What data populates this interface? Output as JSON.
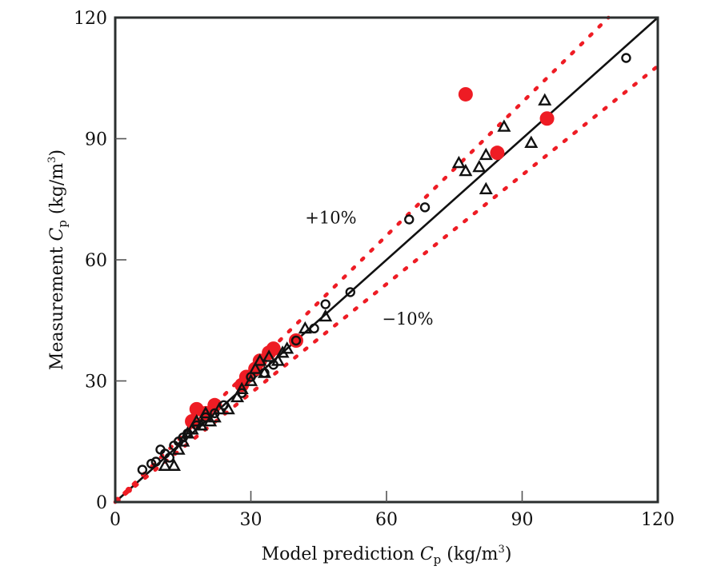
{
  "chart_data": {
    "type": "scatter",
    "title": "",
    "xlabel": "Model prediction C_p (kg/m³)",
    "ylabel": "Measurement C_p (kg/m³)",
    "xlabel_parts": {
      "pre": "Model prediction ",
      "var": "C",
      "sub": "p",
      "post": " (kg/m",
      "sup": "3",
      "end": ")"
    },
    "ylabel_parts": {
      "pre": "Measurement ",
      "var": "C",
      "sub": "p",
      "post": " (kg/m",
      "sup": "3",
      "end": ")"
    },
    "xlim": [
      0,
      120
    ],
    "ylim": [
      0,
      120
    ],
    "xticks": [
      "0",
      "30",
      "60",
      "90",
      "120"
    ],
    "yticks": [
      "0",
      "30",
      "60",
      "90",
      "120"
    ],
    "grid": false,
    "legend": "none",
    "colors": {
      "red": "#ee1c24",
      "black": "#111111",
      "axis": "#2b2f2f"
    },
    "reference_lines": [
      {
        "name": "1:1 line",
        "slope": 1.0,
        "style": "solid",
        "color": "#111111"
      },
      {
        "name": "+10%",
        "slope": 1.1,
        "style": "dotted",
        "color": "#ee1c24"
      },
      {
        "name": "-10%",
        "slope": 0.9,
        "style": "dotted",
        "color": "#ee1c24"
      }
    ],
    "annotations": [
      {
        "text": "+10%",
        "x": 42,
        "y": 69
      },
      {
        "text": "−10%",
        "x": 59,
        "y": 44
      }
    ],
    "series": [
      {
        "name": "circles",
        "marker": "open-circle",
        "points": [
          [
            6,
            8
          ],
          [
            8,
            9.5
          ],
          [
            9,
            10
          ],
          [
            10,
            13
          ],
          [
            11,
            12
          ],
          [
            12,
            11
          ],
          [
            13,
            14
          ],
          [
            14,
            15
          ],
          [
            15,
            16
          ],
          [
            16,
            17
          ],
          [
            18,
            19
          ],
          [
            20,
            21
          ],
          [
            22,
            22
          ],
          [
            24,
            24
          ],
          [
            28,
            27
          ],
          [
            30,
            31
          ],
          [
            33,
            32
          ],
          [
            35,
            34
          ],
          [
            40,
            40
          ],
          [
            44,
            43
          ],
          [
            46.5,
            49
          ],
          [
            52,
            52
          ],
          [
            65,
            70
          ],
          [
            68.5,
            73
          ],
          [
            113,
            110
          ]
        ]
      },
      {
        "name": "triangles",
        "marker": "open-triangle",
        "points": [
          [
            11,
            9
          ],
          [
            13,
            9
          ],
          [
            14,
            13
          ],
          [
            15,
            15
          ],
          [
            16,
            17
          ],
          [
            17,
            18
          ],
          [
            18,
            20
          ],
          [
            19,
            19
          ],
          [
            20,
            22
          ],
          [
            21,
            20
          ],
          [
            22,
            21
          ],
          [
            23,
            23
          ],
          [
            25,
            23
          ],
          [
            27,
            26
          ],
          [
            28,
            28
          ],
          [
            30,
            30
          ],
          [
            31,
            33
          ],
          [
            32,
            35
          ],
          [
            33,
            32
          ],
          [
            34,
            36
          ],
          [
            36,
            35
          ],
          [
            37,
            37
          ],
          [
            38,
            38
          ],
          [
            42,
            43
          ],
          [
            46.5,
            46
          ],
          [
            76,
            84
          ],
          [
            77.5,
            82
          ],
          [
            80.5,
            83
          ],
          [
            82,
            86
          ],
          [
            82,
            77.5
          ],
          [
            86,
            93
          ],
          [
            92,
            89
          ],
          [
            95,
            99.5
          ]
        ]
      },
      {
        "name": "filled-red",
        "marker": "filled-circle",
        "points": [
          [
            0.5,
            0.5
          ],
          [
            3,
            3
          ],
          [
            17,
            20
          ],
          [
            18,
            23
          ],
          [
            20,
            22
          ],
          [
            22,
            24
          ],
          [
            28,
            29
          ],
          [
            29,
            31
          ],
          [
            31,
            33
          ],
          [
            32,
            35
          ],
          [
            34,
            37
          ],
          [
            35,
            38
          ],
          [
            40,
            40
          ],
          [
            77.5,
            101
          ],
          [
            84.5,
            86.5
          ],
          [
            95.5,
            95
          ]
        ]
      }
    ]
  }
}
